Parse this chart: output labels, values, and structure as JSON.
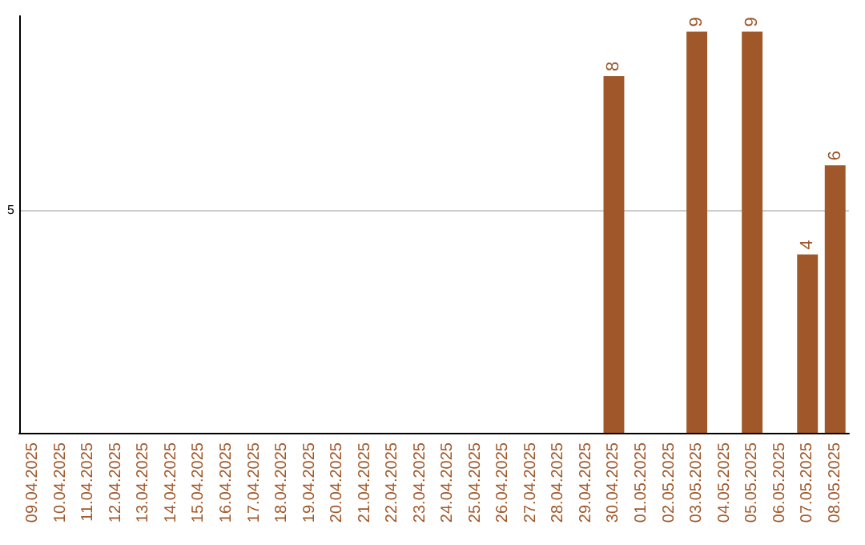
{
  "chart_data": {
    "type": "bar",
    "categories": [
      "09.04.2025",
      "10.04.2025",
      "11.04.2025",
      "12.04.2025",
      "13.04.2025",
      "14.04.2025",
      "15.04.2025",
      "16.04.2025",
      "17.04.2025",
      "18.04.2025",
      "19.04.2025",
      "20.04.2025",
      "21.04.2025",
      "22.04.2025",
      "23.04.2025",
      "24.04.2025",
      "25.04.2025",
      "26.04.2025",
      "27.04.2025",
      "28.04.2025",
      "29.04.2025",
      "30.04.2025",
      "01.05.2025",
      "02.05.2025",
      "03.05.2025",
      "04.05.2025",
      "05.05.2025",
      "06.05.2025",
      "07.05.2025",
      "08.05.2025"
    ],
    "values": [
      null,
      null,
      null,
      null,
      null,
      null,
      null,
      null,
      null,
      null,
      null,
      null,
      null,
      null,
      null,
      null,
      null,
      null,
      null,
      null,
      null,
      8,
      null,
      null,
      9,
      null,
      9,
      null,
      4,
      6
    ],
    "color": "#a0582a",
    "ylim": [
      0,
      9.35
    ],
    "yticks": [
      5
    ],
    "grid": "y",
    "data_labels": true
  }
}
